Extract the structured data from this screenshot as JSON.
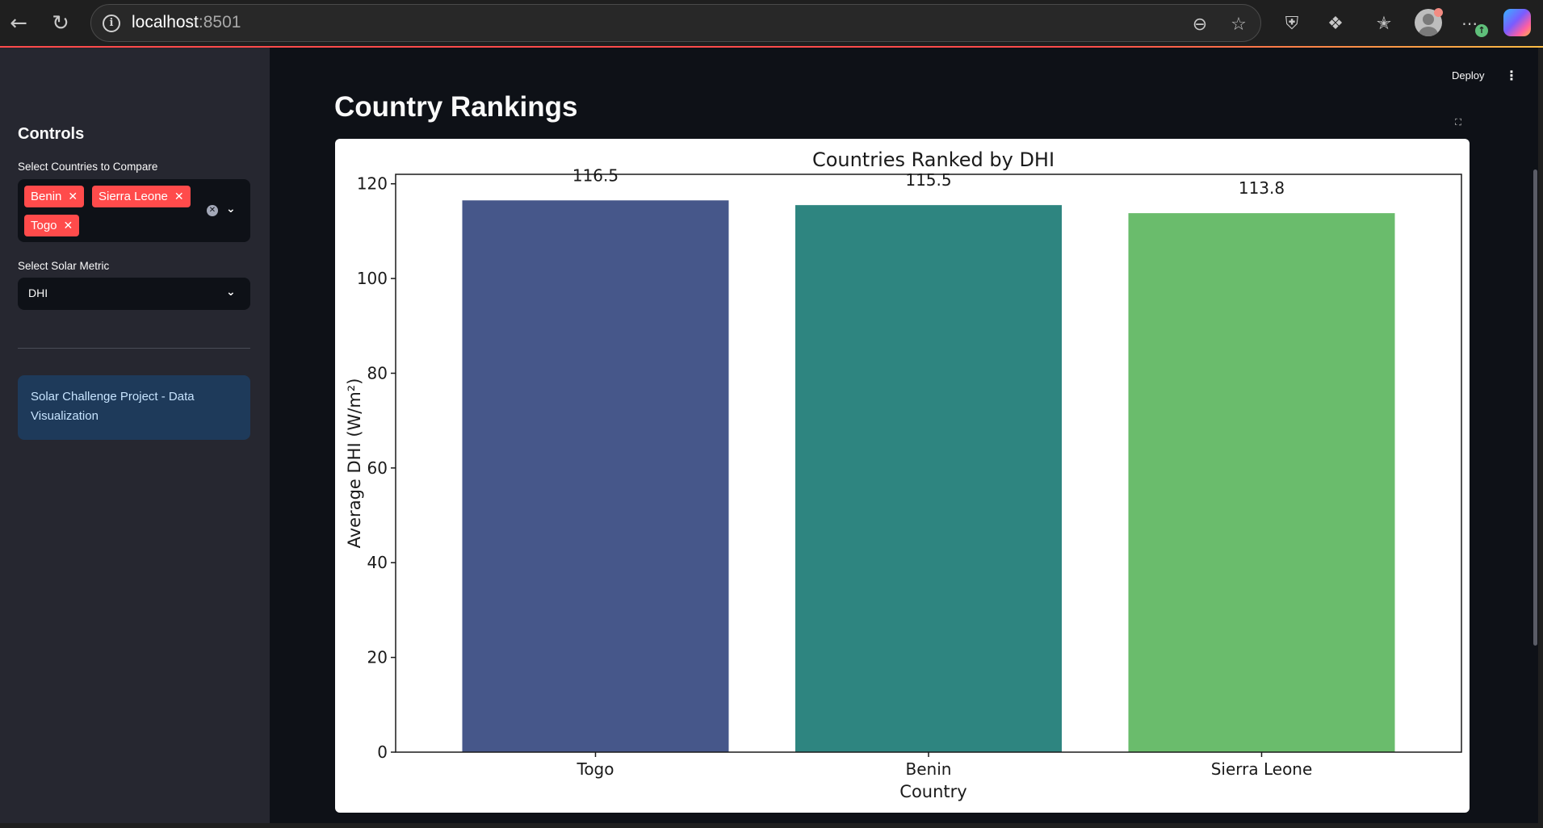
{
  "browser": {
    "url_host": "localhost",
    "url_port": ":8501",
    "icons": [
      "back-arrow-icon",
      "reload-icon",
      "site-info-icon",
      "zoom-out-icon",
      "star-icon",
      "shield-icon",
      "extensions-icon",
      "favorites-icon",
      "profile-avatar",
      "more-icon",
      "copilot-icon"
    ]
  },
  "sidebar": {
    "title": "Controls",
    "countries_label": "Select Countries to Compare",
    "selected_countries": [
      "Benin",
      "Sierra Leone",
      "Togo"
    ],
    "metric_label": "Select Solar Metric",
    "metric_value": "DHI",
    "info_text": "Solar Challenge Project - Data Visualization"
  },
  "header": {
    "deploy_label": "Deploy"
  },
  "main": {
    "title": "Country Rankings"
  },
  "colors": {
    "chip": "#ff4b4b",
    "bar_togo": "#46578a",
    "bar_benin": "#2e8580",
    "bar_sierra_leone": "#6abc6c"
  },
  "chart_data": {
    "type": "bar",
    "title": "Countries Ranked by DHI",
    "xlabel": "Country",
    "ylabel": "Average DHI (W/m²)",
    "categories": [
      "Togo",
      "Benin",
      "Sierra Leone"
    ],
    "values": [
      116.5,
      115.5,
      113.8
    ],
    "value_labels": [
      "116.5",
      "115.5",
      "113.8"
    ],
    "ylim": [
      0,
      122
    ],
    "yticks": [
      0,
      20,
      40,
      60,
      80,
      100,
      120
    ],
    "bar_colors": [
      "#46578a",
      "#2e8580",
      "#6abc6c"
    ],
    "grid": false,
    "legend": "none"
  }
}
